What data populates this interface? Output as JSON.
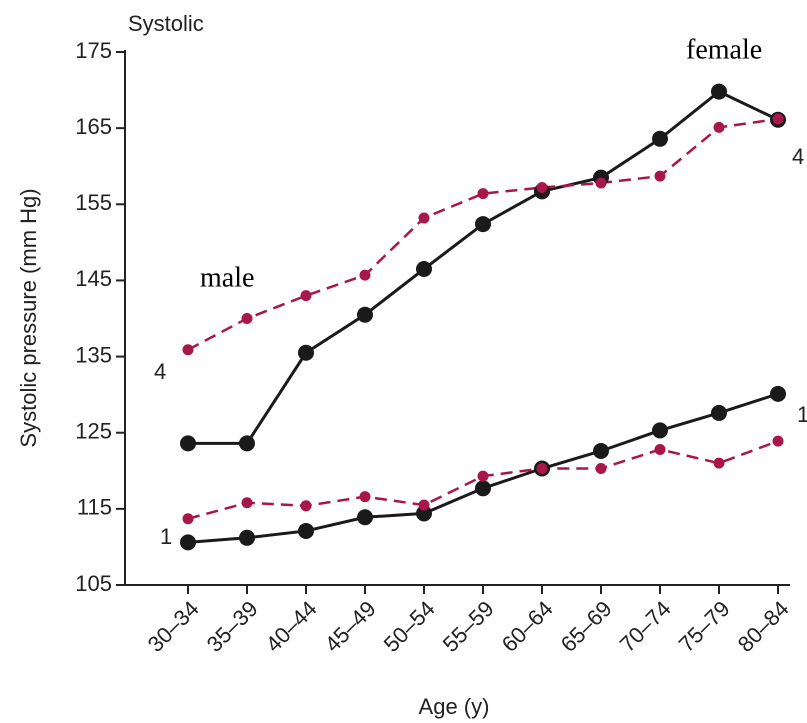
{
  "chart_data": {
    "type": "line",
    "title": "Systolic",
    "y_label": "Systolic pressure (mm Hg)",
    "x_label": "Age (y)",
    "categories": [
      "30–34",
      "35–39",
      "40–44",
      "45–49",
      "50–54",
      "55–59",
      "60–64",
      "65–69",
      "70–74",
      "75–79",
      "80–84"
    ],
    "ylim": [
      105,
      175
    ],
    "yticks": [
      105,
      115,
      125,
      135,
      145,
      155,
      165,
      175
    ],
    "series": [
      {
        "color": "#1a1a1a",
        "dashed": false,
        "values": [
          123.6,
          123.6,
          135.5,
          140.5,
          146.5,
          152.4,
          156.7,
          158.5,
          163.6,
          169.8,
          166.1
        ]
      },
      {
        "color": "#a8164a",
        "dashed": true,
        "values": [
          135.9,
          140.0,
          143.0,
          145.7,
          153.2,
          156.4,
          157.2,
          157.8,
          158.7,
          165.1,
          166.2
        ]
      },
      {
        "color": "#1a1a1a",
        "dashed": false,
        "values": [
          110.6,
          111.2,
          112.1,
          113.9,
          114.4,
          117.7,
          120.3,
          122.6,
          125.3,
          127.6,
          130.1
        ]
      },
      {
        "color": "#a8164a",
        "dashed": true,
        "values": [
          113.7,
          115.8,
          115.4,
          116.6,
          115.5,
          119.3,
          120.3,
          120.3,
          122.8,
          121.0,
          123.9
        ]
      }
    ],
    "annotations": [
      "female",
      "male",
      "4",
      "1",
      "4",
      "1"
    ]
  }
}
